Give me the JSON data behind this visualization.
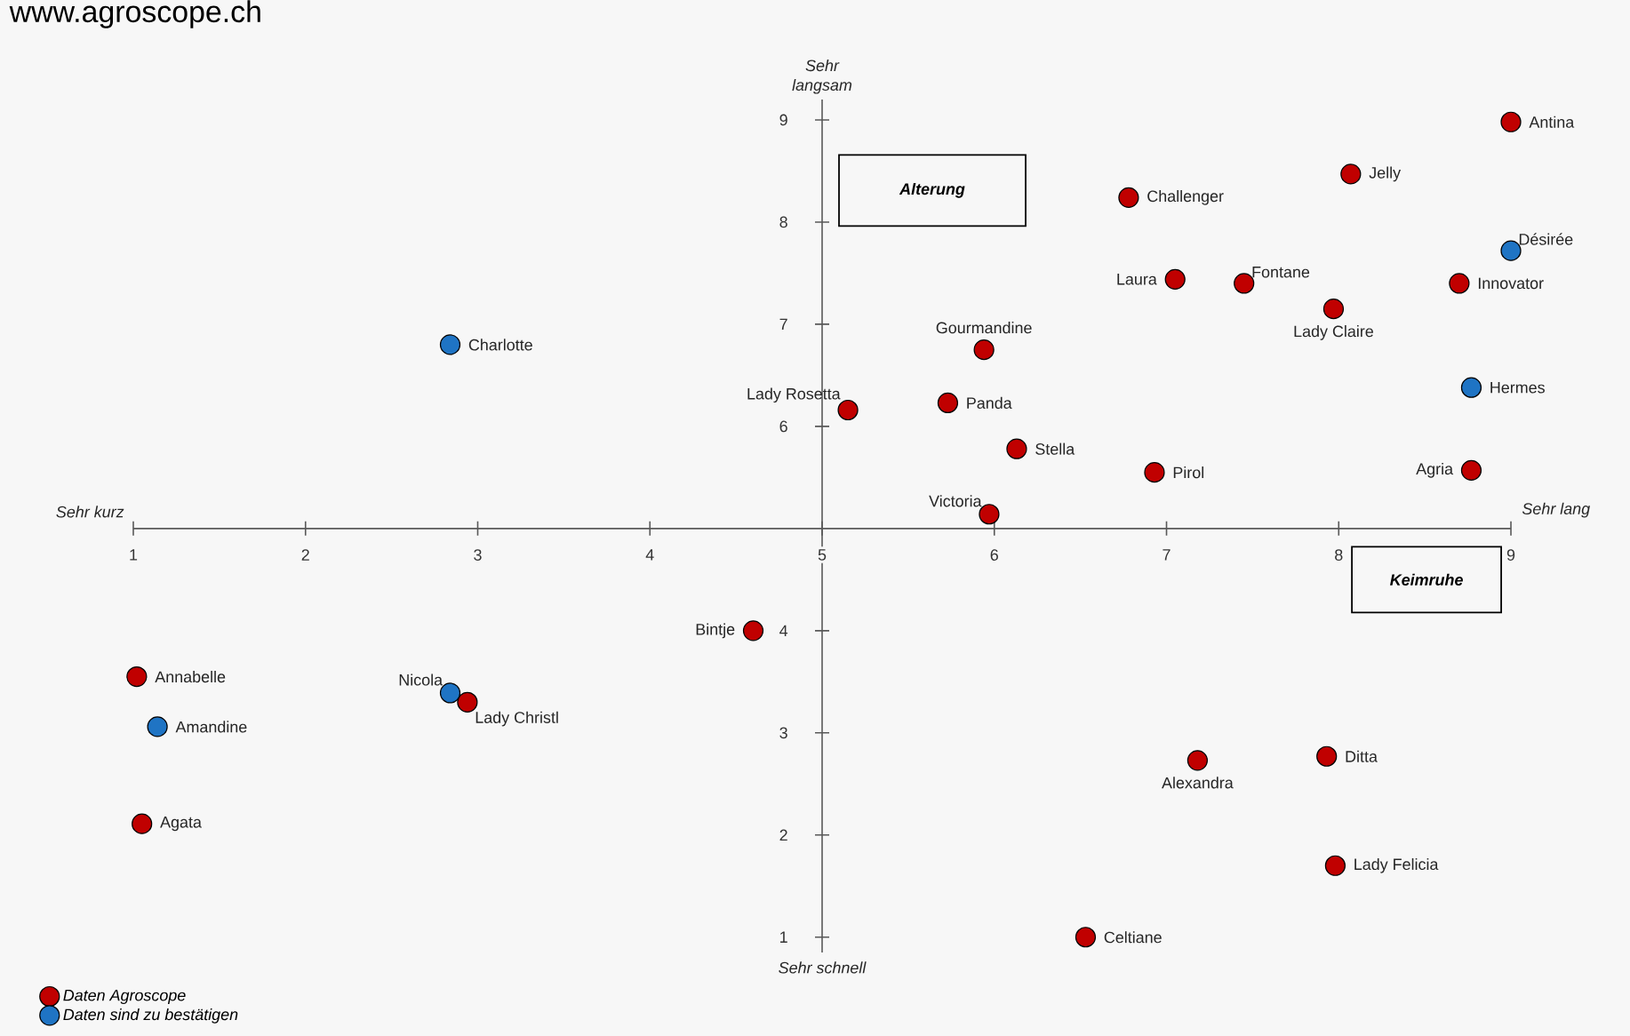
{
  "chart_data": {
    "type": "scatter",
    "xlim": [
      1,
      9
    ],
    "ylim": [
      0.85,
      9.2
    ],
    "xticks": [
      1,
      2,
      3,
      4,
      5,
      6,
      7,
      8,
      9
    ],
    "yticks": [
      1,
      2,
      3,
      4,
      6,
      7,
      8,
      9
    ],
    "grid": false,
    "legend": "bottom left",
    "marker": "circle",
    "series": [
      {
        "name": "Daten Agroscope",
        "color": "#c00000",
        "x": [
          9.0,
          8.07,
          6.78,
          7.05,
          7.45,
          8.7,
          7.97,
          5.94,
          5.15,
          5.73,
          6.13,
          6.93,
          8.77,
          5.97,
          4.6,
          1.02,
          2.94,
          7.18,
          7.93,
          1.05,
          7.98,
          6.53
        ],
        "values": [
          8.98,
          8.47,
          8.24,
          7.44,
          7.4,
          7.4,
          7.15,
          6.75,
          6.16,
          6.23,
          5.78,
          5.55,
          5.57,
          5.14,
          4.0,
          3.55,
          3.3,
          2.73,
          2.77,
          2.11,
          1.7,
          1.0
        ]
      },
      {
        "name": "Daten sind zu bestätigen",
        "color": "#1f74c4",
        "x": [
          9.0,
          2.84,
          8.77,
          2.84,
          1.14
        ],
        "values": [
          7.72,
          6.8,
          6.38,
          3.39,
          3.06
        ]
      }
    ],
    "annotations": [
      {
        "text": "Antina",
        "x": 9.0,
        "y": 8.98
      },
      {
        "text": "Jelly",
        "x": 8.07,
        "y": 8.47
      },
      {
        "text": "Challenger",
        "x": 6.78,
        "y": 8.24
      },
      {
        "text": "Désirée",
        "x": 9.0,
        "y": 7.72
      },
      {
        "text": "Laura",
        "x": 7.05,
        "y": 7.44
      },
      {
        "text": "Fontane",
        "x": 7.45,
        "y": 7.4
      },
      {
        "text": "Innovator",
        "x": 8.7,
        "y": 7.4
      },
      {
        "text": "Lady Claire",
        "x": 7.97,
        "y": 7.15
      },
      {
        "text": "Gourmandine",
        "x": 5.94,
        "y": 6.75
      },
      {
        "text": "Charlotte",
        "x": 2.84,
        "y": 6.8
      },
      {
        "text": "Hermes",
        "x": 8.77,
        "y": 6.38
      },
      {
        "text": "Lady Rosetta",
        "x": 5.15,
        "y": 6.16
      },
      {
        "text": "Panda",
        "x": 5.73,
        "y": 6.23
      },
      {
        "text": "Stella",
        "x": 6.13,
        "y": 5.78
      },
      {
        "text": "Pirol",
        "x": 6.93,
        "y": 5.55
      },
      {
        "text": "Agria",
        "x": 8.77,
        "y": 5.57
      },
      {
        "text": "Victoria",
        "x": 5.97,
        "y": 5.14
      },
      {
        "text": "Bintje",
        "x": 4.6,
        "y": 4.0
      },
      {
        "text": "Annabelle",
        "x": 1.02,
        "y": 3.55
      },
      {
        "text": "Nicola",
        "x": 2.84,
        "y": 3.39
      },
      {
        "text": "Lady Christl",
        "x": 2.94,
        "y": 3.3
      },
      {
        "text": "Amandine",
        "x": 1.14,
        "y": 3.06
      },
      {
        "text": "Alexandra",
        "x": 7.18,
        "y": 2.73
      },
      {
        "text": "Ditta",
        "x": 7.93,
        "y": 2.77
      },
      {
        "text": "Agata",
        "x": 1.05,
        "y": 2.11
      },
      {
        "text": "Lady Felicia",
        "x": 7.98,
        "y": 1.7
      },
      {
        "text": "Celtiane",
        "x": 6.53,
        "y": 1.0
      },
      "Sehr langsam",
      "Sehr schnell",
      "Sehr kurz",
      "Sehr lang",
      "Alterung",
      "Keimruhe",
      "www.agroscope.ch"
    ]
  }
}
